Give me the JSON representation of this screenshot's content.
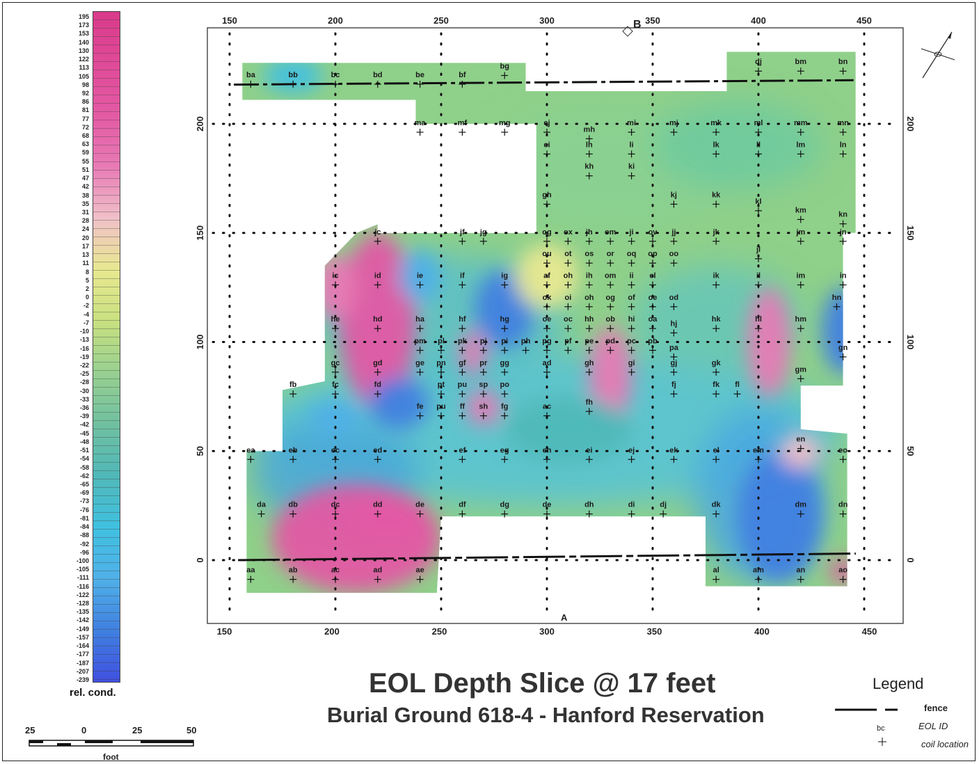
{
  "title": "EOL Depth Slice @ 17 feet",
  "subtitle": "Burial Ground 618-4 - Hanford Reservation",
  "colorbar": {
    "label": "rel. cond.",
    "ticks": [
      "195",
      "173",
      "153",
      "140",
      "130",
      "122",
      "113",
      "105",
      "98",
      "92",
      "86",
      "81",
      "77",
      "72",
      "68",
      "63",
      "59",
      "55",
      "51",
      "47",
      "42",
      "38",
      "35",
      "31",
      "28",
      "24",
      "20",
      "17",
      "13",
      "11",
      "8",
      "5",
      "2",
      "0",
      "-2",
      "-4",
      "-7",
      "-10",
      "-13",
      "-16",
      "-19",
      "-22",
      "-25",
      "-28",
      "-30",
      "-33",
      "-36",
      "-39",
      "-42",
      "-45",
      "-48",
      "-51",
      "-54",
      "-58",
      "-62",
      "-65",
      "-69",
      "-73",
      "-76",
      "-81",
      "-84",
      "-88",
      "-92",
      "-96",
      "-100",
      "-105",
      "-111",
      "-116",
      "-122",
      "-128",
      "-135",
      "-142",
      "-149",
      "-157",
      "-164",
      "-177",
      "-187",
      "-207",
      "-239"
    ],
    "colors": [
      "#d93a8a",
      "#e04a98",
      "#e35aa4",
      "#e87ab5",
      "#f0c0c8",
      "#e8e890",
      "#c8e080",
      "#98d090",
      "#70c0a0",
      "#50b8b8",
      "#40c0e0",
      "#50b0e8",
      "#4080e0",
      "#4050e0"
    ]
  },
  "scalebar": {
    "labels": [
      "25",
      "0",
      "25",
      "50"
    ],
    "unit": "foot"
  },
  "axes": {
    "x_ticks_top": [
      "150",
      "200",
      "250",
      "300",
      "350",
      "400",
      "450"
    ],
    "x_ticks_bottom": [
      "150",
      "200",
      "250",
      "300",
      "350",
      "400",
      "450"
    ],
    "y_ticks_left": [
      "200",
      "150",
      "100",
      "50",
      "0"
    ],
    "y_ticks_right": [
      "200",
      "150",
      "100",
      "50",
      "0"
    ],
    "marker_top": "B",
    "marker_bottom": "A"
  },
  "legend": {
    "title": "Legend",
    "fence_label": "fence",
    "eol_label": "EOL ID",
    "coil_label": "coil location",
    "sample_id": "bc"
  },
  "stations": [
    {
      "id": "ba",
      "x": 160,
      "y": 222
    },
    {
      "id": "bb",
      "x": 180,
      "y": 222
    },
    {
      "id": "bc",
      "x": 200,
      "y": 222
    },
    {
      "id": "bd",
      "x": 220,
      "y": 222
    },
    {
      "id": "be",
      "x": 240,
      "y": 222
    },
    {
      "id": "bf",
      "x": 260,
      "y": 222
    },
    {
      "id": "bg",
      "x": 280,
      "y": 226
    },
    {
      "id": "dj",
      "x": 400,
      "y": 228
    },
    {
      "id": "bm",
      "x": 420,
      "y": 228
    },
    {
      "id": "bn",
      "x": 440,
      "y": 228
    },
    {
      "id": "ma",
      "x": 240,
      "y": 200
    },
    {
      "id": "mf",
      "x": 260,
      "y": 200
    },
    {
      "id": "mg",
      "x": 280,
      "y": 200
    },
    {
      "id": "ej",
      "x": 300,
      "y": 200
    },
    {
      "id": "mi",
      "x": 340,
      "y": 200
    },
    {
      "id": "mj",
      "x": 360,
      "y": 200
    },
    {
      "id": "mk",
      "x": 380,
      "y": 200
    },
    {
      "id": "ml",
      "x": 400,
      "y": 200
    },
    {
      "id": "mm",
      "x": 420,
      "y": 200
    },
    {
      "id": "mn",
      "x": 440,
      "y": 200
    },
    {
      "id": "mh",
      "x": 320,
      "y": 197
    },
    {
      "id": "ei",
      "x": 300,
      "y": 190
    },
    {
      "id": "lh",
      "x": 320,
      "y": 190
    },
    {
      "id": "li",
      "x": 340,
      "y": 190
    },
    {
      "id": "lk",
      "x": 380,
      "y": 190
    },
    {
      "id": "ll",
      "x": 400,
      "y": 190
    },
    {
      "id": "lm",
      "x": 420,
      "y": 190
    },
    {
      "id": "ln",
      "x": 440,
      "y": 190
    },
    {
      "id": "kh",
      "x": 320,
      "y": 180
    },
    {
      "id": "ki",
      "x": 340,
      "y": 180
    },
    {
      "id": "gh",
      "x": 300,
      "y": 167
    },
    {
      "id": "kj",
      "x": 360,
      "y": 167
    },
    {
      "id": "kk",
      "x": 380,
      "y": 167
    },
    {
      "id": "kl",
      "x": 400,
      "y": 164
    },
    {
      "id": "km",
      "x": 420,
      "y": 160
    },
    {
      "id": "kn",
      "x": 440,
      "y": 158
    },
    {
      "id": "jc",
      "x": 220,
      "y": 150
    },
    {
      "id": "jf",
      "x": 260,
      "y": 150
    },
    {
      "id": "jg",
      "x": 270,
      "y": 150
    },
    {
      "id": "og",
      "x": 300,
      "y": 150
    },
    {
      "id": "ox",
      "x": 310,
      "y": 150
    },
    {
      "id": "jh",
      "x": 320,
      "y": 150
    },
    {
      "id": "om",
      "x": 330,
      "y": 150
    },
    {
      "id": "ji",
      "x": 340,
      "y": 150
    },
    {
      "id": "ov",
      "x": 350,
      "y": 150
    },
    {
      "id": "jj",
      "x": 360,
      "y": 150
    },
    {
      "id": "jk",
      "x": 380,
      "y": 150
    },
    {
      "id": "jm",
      "x": 420,
      "y": 150
    },
    {
      "id": "jn",
      "x": 440,
      "y": 150
    },
    {
      "id": "ou",
      "x": 300,
      "y": 140
    },
    {
      "id": "ot",
      "x": 310,
      "y": 140
    },
    {
      "id": "os",
      "x": 320,
      "y": 140
    },
    {
      "id": "or",
      "x": 330,
      "y": 140
    },
    {
      "id": "oq",
      "x": 340,
      "y": 140
    },
    {
      "id": "op",
      "x": 350,
      "y": 140
    },
    {
      "id": "oo",
      "x": 360,
      "y": 140
    },
    {
      "id": "jl",
      "x": 400,
      "y": 142
    },
    {
      "id": "ic",
      "x": 200,
      "y": 130
    },
    {
      "id": "id",
      "x": 220,
      "y": 130
    },
    {
      "id": "ie",
      "x": 240,
      "y": 130
    },
    {
      "id": "if",
      "x": 260,
      "y": 130
    },
    {
      "id": "ig",
      "x": 280,
      "y": 130
    },
    {
      "id": "af",
      "x": 300,
      "y": 130
    },
    {
      "id": "oh",
      "x": 310,
      "y": 130
    },
    {
      "id": "ih",
      "x": 320,
      "y": 130
    },
    {
      "id": "om",
      "x": 330,
      "y": 130
    },
    {
      "id": "ii",
      "x": 340,
      "y": 130
    },
    {
      "id": "el",
      "x": 350,
      "y": 130
    },
    {
      "id": "ik",
      "x": 380,
      "y": 130
    },
    {
      "id": "il",
      "x": 400,
      "y": 130
    },
    {
      "id": "im",
      "x": 420,
      "y": 130
    },
    {
      "id": "in",
      "x": 440,
      "y": 130
    },
    {
      "id": "ok",
      "x": 300,
      "y": 120
    },
    {
      "id": "oi",
      "x": 310,
      "y": 120
    },
    {
      "id": "oh",
      "x": 320,
      "y": 120
    },
    {
      "id": "og",
      "x": 330,
      "y": 120
    },
    {
      "id": "of",
      "x": 340,
      "y": 120
    },
    {
      "id": "oe",
      "x": 350,
      "y": 120
    },
    {
      "id": "od",
      "x": 360,
      "y": 120
    },
    {
      "id": "hn",
      "x": 437,
      "y": 120
    },
    {
      "id": "he",
      "x": 200,
      "y": 110
    },
    {
      "id": "hd",
      "x": 220,
      "y": 110
    },
    {
      "id": "ha",
      "x": 240,
      "y": 110
    },
    {
      "id": "hf",
      "x": 260,
      "y": 110
    },
    {
      "id": "hg",
      "x": 280,
      "y": 110
    },
    {
      "id": "oe",
      "x": 300,
      "y": 110
    },
    {
      "id": "oc",
      "x": 310,
      "y": 110
    },
    {
      "id": "hh",
      "x": 320,
      "y": 110
    },
    {
      "id": "ob",
      "x": 330,
      "y": 110
    },
    {
      "id": "hi",
      "x": 340,
      "y": 110
    },
    {
      "id": "oa",
      "x": 350,
      "y": 110
    },
    {
      "id": "hj",
      "x": 360,
      "y": 108
    },
    {
      "id": "hk",
      "x": 380,
      "y": 110
    },
    {
      "id": "hl",
      "x": 400,
      "y": 110
    },
    {
      "id": "hm",
      "x": 420,
      "y": 110
    },
    {
      "id": "pm",
      "x": 240,
      "y": 100
    },
    {
      "id": "pl",
      "x": 250,
      "y": 100
    },
    {
      "id": "pk",
      "x": 260,
      "y": 100
    },
    {
      "id": "pj",
      "x": 270,
      "y": 100
    },
    {
      "id": "pi",
      "x": 280,
      "y": 100
    },
    {
      "id": "ph",
      "x": 290,
      "y": 100
    },
    {
      "id": "pg",
      "x": 300,
      "y": 100
    },
    {
      "id": "pf",
      "x": 310,
      "y": 100
    },
    {
      "id": "pe",
      "x": 320,
      "y": 100
    },
    {
      "id": "pd",
      "x": 330,
      "y": 100
    },
    {
      "id": "pc",
      "x": 340,
      "y": 100
    },
    {
      "id": "pb",
      "x": 350,
      "y": 100
    },
    {
      "id": "pa",
      "x": 360,
      "y": 97
    },
    {
      "id": "gn",
      "x": 440,
      "y": 97
    },
    {
      "id": "gc",
      "x": 200,
      "y": 90
    },
    {
      "id": "gd",
      "x": 220,
      "y": 90
    },
    {
      "id": "ge",
      "x": 240,
      "y": 90
    },
    {
      "id": "pn",
      "x": 250,
      "y": 90
    },
    {
      "id": "gf",
      "x": 260,
      "y": 90
    },
    {
      "id": "pr",
      "x": 270,
      "y": 90
    },
    {
      "id": "gg",
      "x": 280,
      "y": 90
    },
    {
      "id": "ad",
      "x": 300,
      "y": 90
    },
    {
      "id": "gh",
      "x": 320,
      "y": 90
    },
    {
      "id": "gi",
      "x": 340,
      "y": 90
    },
    {
      "id": "gj",
      "x": 360,
      "y": 90
    },
    {
      "id": "gk",
      "x": 380,
      "y": 90
    },
    {
      "id": "gm",
      "x": 420,
      "y": 87
    },
    {
      "id": "fb",
      "x": 180,
      "y": 80
    },
    {
      "id": "fc",
      "x": 200,
      "y": 80
    },
    {
      "id": "fd",
      "x": 220,
      "y": 80
    },
    {
      "id": "pt",
      "x": 250,
      "y": 80
    },
    {
      "id": "pu",
      "x": 260,
      "y": 80
    },
    {
      "id": "sp",
      "x": 270,
      "y": 80
    },
    {
      "id": "po",
      "x": 280,
      "y": 80
    },
    {
      "id": "fj",
      "x": 360,
      "y": 80
    },
    {
      "id": "fk",
      "x": 380,
      "y": 80
    },
    {
      "id": "fl",
      "x": 390,
      "y": 80
    },
    {
      "id": "fe",
      "x": 240,
      "y": 70
    },
    {
      "id": "pu",
      "x": 250,
      "y": 70
    },
    {
      "id": "ff",
      "x": 260,
      "y": 70
    },
    {
      "id": "sh",
      "x": 270,
      "y": 70
    },
    {
      "id": "fg",
      "x": 280,
      "y": 70
    },
    {
      "id": "ac",
      "x": 300,
      "y": 70
    },
    {
      "id": "fh",
      "x": 320,
      "y": 72
    },
    {
      "id": "ea",
      "x": 160,
      "y": 50
    },
    {
      "id": "eb",
      "x": 180,
      "y": 50
    },
    {
      "id": "ec",
      "x": 200,
      "y": 50
    },
    {
      "id": "ed",
      "x": 220,
      "y": 50
    },
    {
      "id": "ef",
      "x": 260,
      "y": 50
    },
    {
      "id": "eg",
      "x": 280,
      "y": 50
    },
    {
      "id": "eh",
      "x": 300,
      "y": 50
    },
    {
      "id": "ei",
      "x": 320,
      "y": 50
    },
    {
      "id": "ej",
      "x": 340,
      "y": 50
    },
    {
      "id": "ek",
      "x": 360,
      "y": 50
    },
    {
      "id": "el",
      "x": 380,
      "y": 50
    },
    {
      "id": "em",
      "x": 400,
      "y": 50
    },
    {
      "id": "en",
      "x": 420,
      "y": 55
    },
    {
      "id": "eo",
      "x": 440,
      "y": 50
    },
    {
      "id": "da",
      "x": 165,
      "y": 25
    },
    {
      "id": "db",
      "x": 180,
      "y": 25
    },
    {
      "id": "dc",
      "x": 200,
      "y": 25
    },
    {
      "id": "dd",
      "x": 220,
      "y": 25
    },
    {
      "id": "de",
      "x": 240,
      "y": 25
    },
    {
      "id": "df",
      "x": 260,
      "y": 25
    },
    {
      "id": "dg",
      "x": 280,
      "y": 25
    },
    {
      "id": "de",
      "x": 300,
      "y": 25
    },
    {
      "id": "dh",
      "x": 320,
      "y": 25
    },
    {
      "id": "di",
      "x": 340,
      "y": 25
    },
    {
      "id": "dj",
      "x": 355,
      "y": 25
    },
    {
      "id": "dk",
      "x": 380,
      "y": 25
    },
    {
      "id": "dm",
      "x": 420,
      "y": 25
    },
    {
      "id": "dn",
      "x": 440,
      "y": 25
    },
    {
      "id": "aa",
      "x": 160,
      "y": -5
    },
    {
      "id": "ab",
      "x": 180,
      "y": -5
    },
    {
      "id": "ac",
      "x": 200,
      "y": -5
    },
    {
      "id": "ad",
      "x": 220,
      "y": -5
    },
    {
      "id": "ae",
      "x": 240,
      "y": -5
    },
    {
      "id": "al",
      "x": 380,
      "y": -5
    },
    {
      "id": "am",
      "x": 400,
      "y": -5
    },
    {
      "id": "an",
      "x": 420,
      "y": -5
    },
    {
      "id": "ao",
      "x": 440,
      "y": -5
    }
  ],
  "anomalies": [
    {
      "x": 220,
      "y": 110,
      "rx": 18,
      "ry": 40,
      "value": 120
    },
    {
      "x": 200,
      "y": 125,
      "rx": 10,
      "ry": 15,
      "value": 110
    },
    {
      "x": 210,
      "y": 10,
      "rx": 40,
      "ry": 25,
      "value": 140
    },
    {
      "x": 225,
      "y": 18,
      "rx": 20,
      "ry": 10,
      "value": 130
    },
    {
      "x": 330,
      "y": 85,
      "rx": 10,
      "ry": 22,
      "value": 100
    },
    {
      "x": 405,
      "y": 100,
      "rx": 10,
      "ry": 25,
      "value": 110
    },
    {
      "x": 265,
      "y": 95,
      "rx": 6,
      "ry": 10,
      "value": 90
    },
    {
      "x": 270,
      "y": 70,
      "rx": 8,
      "ry": 8,
      "value": 80
    },
    {
      "x": 440,
      "y": -5,
      "rx": 6,
      "ry": 6,
      "value": 120
    },
    {
      "x": 240,
      "y": 130,
      "rx": 10,
      "ry": 12,
      "value": -180
    },
    {
      "x": 230,
      "y": 72,
      "rx": 14,
      "ry": 12,
      "value": -200
    },
    {
      "x": 200,
      "y": 65,
      "rx": 12,
      "ry": 8,
      "value": -170
    },
    {
      "x": 280,
      "y": 115,
      "rx": 14,
      "ry": 18,
      "value": -200
    },
    {
      "x": 410,
      "y": 20,
      "rx": 20,
      "ry": 30,
      "value": -200
    },
    {
      "x": 180,
      "y": 222,
      "rx": 14,
      "ry": 8,
      "value": -150
    },
    {
      "x": 440,
      "y": 105,
      "rx": 10,
      "ry": 20,
      "value": -190
    },
    {
      "x": 310,
      "y": 60,
      "rx": 30,
      "ry": 15,
      "value": -90
    },
    {
      "x": 420,
      "y": 50,
      "rx": 10,
      "ry": 8,
      "value": 60
    },
    {
      "x": 300,
      "y": 130,
      "rx": 15,
      "ry": 15,
      "value": 20
    }
  ]
}
